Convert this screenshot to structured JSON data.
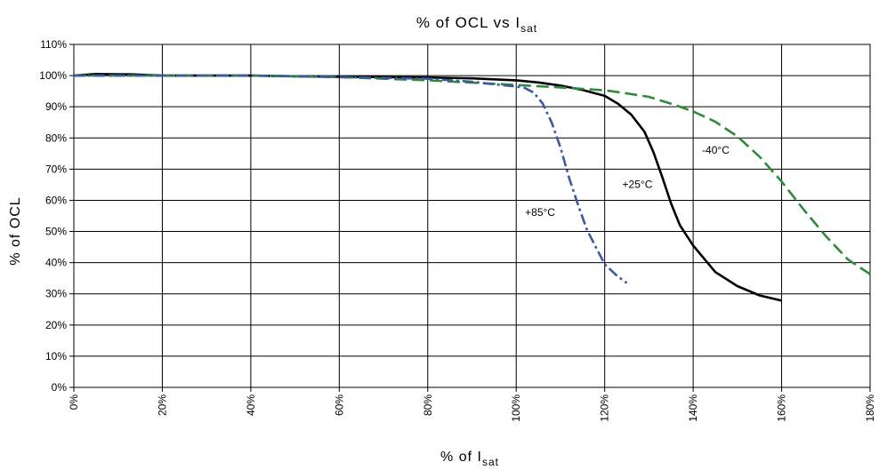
{
  "chart_data": {
    "type": "line",
    "title": "% of OCL vs Isat",
    "title_parts": {
      "main": "% of OCL vs I",
      "sub": "sat"
    },
    "xlabel": "% of Isat",
    "xlabel_parts": {
      "main": "% of I",
      "sub": "sat"
    },
    "ylabel": "% of OCL",
    "xlim": [
      0,
      180
    ],
    "ylim": [
      0,
      110
    ],
    "x_ticks": [
      "0%",
      "20%",
      "40%",
      "60%",
      "80%",
      "100%",
      "120%",
      "140%",
      "160%",
      "180%"
    ],
    "y_ticks": [
      "0%",
      "10%",
      "20%",
      "30%",
      "40%",
      "50%",
      "60%",
      "70%",
      "80%",
      "90%",
      "100%",
      "110%"
    ],
    "grid": true,
    "series": [
      {
        "name": "+25°C",
        "color": "#000000",
        "dash": "solid",
        "x": [
          0,
          5,
          13,
          20,
          40,
          60,
          80,
          90,
          100,
          105,
          110,
          115,
          120,
          123,
          126,
          129,
          131,
          133,
          135,
          137,
          140,
          145,
          150,
          155,
          160
        ],
        "y": [
          100,
          100.5,
          100.4,
          100,
          100,
          99.6,
          99.4,
          99.1,
          98.5,
          97.8,
          96.8,
          95.4,
          93.5,
          91,
          87.5,
          82,
          75.5,
          67.5,
          59,
          52,
          45.5,
          37,
          32.5,
          29.5,
          27.8
        ]
      },
      {
        "name": "-40°C",
        "color": "#2f8a3a",
        "dash": "dashed",
        "x": [
          0,
          20,
          40,
          60,
          80,
          100,
          110,
          120,
          125,
          130,
          135,
          140,
          145,
          150,
          155,
          160,
          165,
          170,
          175,
          180
        ],
        "y": [
          100,
          100,
          100,
          99.5,
          98.5,
          97,
          96.2,
          95.3,
          94.3,
          93.2,
          91,
          88.5,
          85.2,
          80.5,
          74,
          66,
          57,
          48.5,
          41,
          36.3
        ]
      },
      {
        "name": "+85°C",
        "color": "#3a59a4",
        "dash": "dashdot",
        "x": [
          0,
          20,
          40,
          60,
          80,
          90,
          95,
          100,
          102,
          104,
          106,
          108,
          110,
          112,
          114,
          116,
          118,
          120,
          123,
          125
        ],
        "y": [
          100,
          100,
          100,
          99.5,
          99,
          98,
          97.2,
          96.5,
          96,
          94.5,
          91,
          85,
          77,
          67,
          58.5,
          50.5,
          45,
          39.5,
          35.5,
          33.5
        ]
      }
    ],
    "annotations": [
      {
        "text": "-40°C",
        "x": 142,
        "y": 75
      },
      {
        "text": "+25°C",
        "x": 124,
        "y": 64
      },
      {
        "text": "+85°C",
        "x": 102,
        "y": 55
      }
    ]
  }
}
